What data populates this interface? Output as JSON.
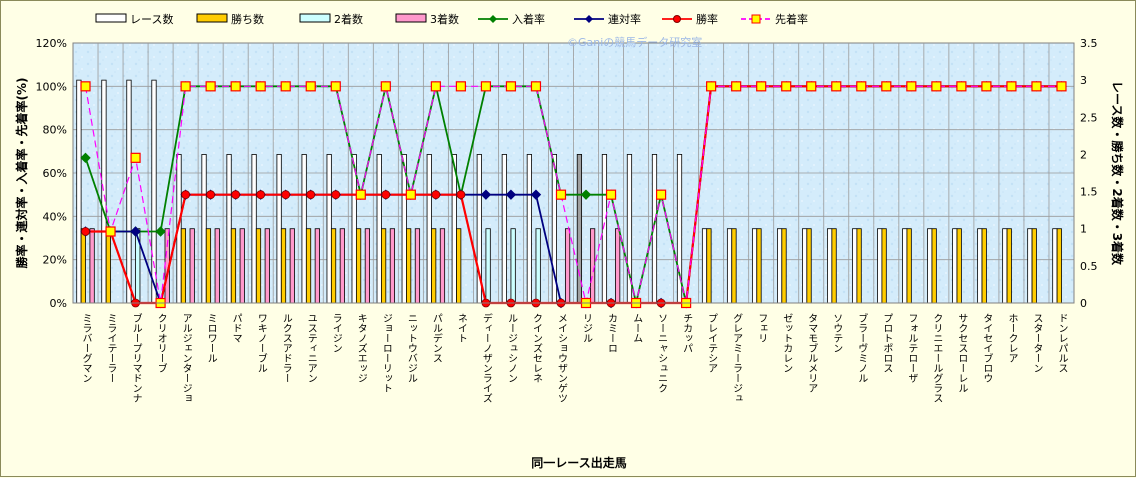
{
  "chart_data": {
    "type": "bar",
    "watermark": "©Ganiの競馬データ研究室",
    "xlabel": "同一レース出走馬",
    "ylabel_left": "勝率・連対率・入着率・先着率(%)",
    "ylabel_right": "レース数・勝ち数・2着数・3着数",
    "ylim_left": [
      0,
      120
    ],
    "ylim_right": [
      0,
      3.5
    ],
    "yticks_left": [
      "0%",
      "20%",
      "40%",
      "60%",
      "80%",
      "100%",
      "120%"
    ],
    "yticks_right": [
      "0",
      "0.5",
      "1",
      "1.5",
      "2",
      "2.5",
      "3",
      "3.5"
    ],
    "grid": true,
    "legend_position": "top",
    "categories": [
      "ミラバーグマン",
      "ミライテーラー",
      "ブループリマドンナ",
      "クリオリーブ",
      "アルジェンタージョ",
      "ミロワール",
      "パドマ",
      "ワキノーブル",
      "ルクスアドラー",
      "ユスティニアン",
      "ライジン",
      "キタノズエッジ",
      "ジョーローリット",
      "ニットウバジル",
      "パルデンス",
      "ネイト",
      "ディーノザンライズ",
      "ルージュシノン",
      "クインズセレネ",
      "メイショウザンゲツ",
      "リジル",
      "カミーロ",
      "ムーム",
      "ソーニャシュニク",
      "チカッパ",
      "プレイテシア",
      "グレアミーラージュ",
      "フェリ",
      "ゼットカレン",
      "タマモブルメリア",
      "ソウテン",
      "ブラーヴミノル",
      "プロトポロス",
      "フォルテローザ",
      "クリニエールグラス",
      "サクセスローレル",
      "タイセイブロウ",
      "ホークレア",
      "スターターン",
      "ドンレパルス"
    ],
    "series": [
      {
        "name": "レース数",
        "axis": "right",
        "kind": "bar",
        "color": "#ffffff",
        "values": [
          3,
          3,
          3,
          3,
          2,
          2,
          2,
          2,
          2,
          2,
          2,
          2,
          2,
          2,
          2,
          2,
          2,
          2,
          2,
          2,
          2,
          2,
          2,
          2,
          2,
          1,
          1,
          1,
          1,
          1,
          1,
          1,
          1,
          1,
          1,
          1,
          1,
          1,
          1,
          1
        ]
      },
      {
        "name": "勝ち数",
        "axis": "right",
        "kind": "bar",
        "color": "#ffcc00",
        "values": [
          1,
          1,
          0,
          0,
          1,
          1,
          1,
          1,
          1,
          1,
          1,
          1,
          1,
          1,
          1,
          1,
          0,
          0,
          0,
          0,
          0,
          0,
          0,
          0,
          0,
          1,
          1,
          1,
          1,
          1,
          1,
          1,
          1,
          1,
          1,
          1,
          1,
          1,
          1,
          1
        ]
      },
      {
        "name": "2着数",
        "axis": "right",
        "kind": "bar",
        "color": "#ccffff",
        "values": [
          0,
          0,
          1,
          0,
          0,
          0,
          0,
          0,
          0,
          0,
          0,
          0,
          0,
          0,
          0,
          0,
          1,
          1,
          1,
          0,
          0,
          0,
          0,
          0,
          0,
          0,
          0,
          0,
          0,
          0,
          0,
          0,
          0,
          0,
          0,
          0,
          0,
          0,
          0,
          0
        ]
      },
      {
        "name": "3着数",
        "axis": "right",
        "kind": "bar",
        "color": "#ff99cc",
        "values": [
          1,
          0,
          0,
          1,
          1,
          1,
          1,
          1,
          1,
          1,
          1,
          1,
          1,
          1,
          1,
          0,
          0,
          0,
          0,
          1,
          1,
          1,
          0,
          0,
          0,
          0,
          0,
          0,
          0,
          0,
          0,
          0,
          0,
          0,
          0,
          0,
          0,
          0,
          0,
          0
        ]
      },
      {
        "name": "入着率",
        "axis": "left",
        "kind": "line",
        "color": "#008000",
        "marker": "diamond",
        "values": [
          67,
          33,
          33,
          33,
          100,
          100,
          100,
          100,
          100,
          100,
          100,
          50,
          100,
          50,
          100,
          50,
          100,
          100,
          100,
          50,
          50,
          50,
          0,
          50,
          0,
          100,
          100,
          100,
          100,
          100,
          100,
          100,
          100,
          100,
          100,
          100,
          100,
          100,
          100,
          100
        ]
      },
      {
        "name": "連対率",
        "axis": "left",
        "kind": "line",
        "color": "#000080",
        "marker": "diamond",
        "values": [
          33,
          33,
          33,
          0,
          50,
          50,
          50,
          50,
          50,
          50,
          50,
          50,
          50,
          50,
          50,
          50,
          50,
          50,
          50,
          0,
          0,
          0,
          0,
          0,
          0,
          100,
          100,
          100,
          100,
          100,
          100,
          100,
          100,
          100,
          100,
          100,
          100,
          100,
          100,
          100
        ]
      },
      {
        "name": "勝率",
        "axis": "left",
        "kind": "line",
        "color": "#ff0000",
        "marker": "circle",
        "values": [
          33,
          33,
          0,
          0,
          50,
          50,
          50,
          50,
          50,
          50,
          50,
          50,
          50,
          50,
          50,
          50,
          0,
          0,
          0,
          0,
          0,
          0,
          0,
          0,
          0,
          100,
          100,
          100,
          100,
          100,
          100,
          100,
          100,
          100,
          100,
          100,
          100,
          100,
          100,
          100
        ]
      },
      {
        "name": "先着率",
        "axis": "left",
        "kind": "line",
        "color": "#ff00ff",
        "marker": "square",
        "dashed": true,
        "values": [
          100,
          33,
          67,
          0,
          100,
          100,
          100,
          100,
          100,
          100,
          100,
          50,
          100,
          50,
          100,
          100,
          100,
          100,
          100,
          50,
          0,
          50,
          0,
          50,
          0,
          100,
          100,
          100,
          100,
          100,
          100,
          100,
          100,
          100,
          100,
          100,
          100,
          100,
          100,
          100
        ]
      }
    ]
  }
}
